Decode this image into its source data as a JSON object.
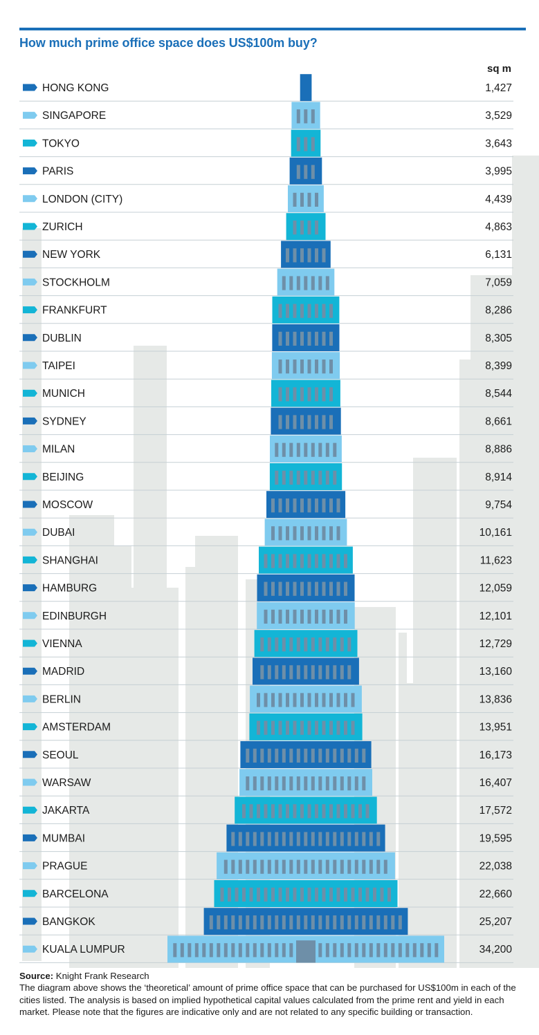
{
  "title": "How much prime office space does US$100m buy?",
  "colors": {
    "title": "#1a6fb8",
    "bar_top": "#1a6fb8",
    "dark": "#1a6fb8",
    "light": "#7fcbef",
    "medium": "#13b5d6",
    "window": "#6e8fa8",
    "divider": "#c5cfd4",
    "skyline": "#e6e9e7"
  },
  "chart_data": {
    "type": "bar",
    "orientation": "horizontal-centered",
    "unit": "sq m",
    "title": "How much prime office space does US$100m buy?",
    "categories": [
      "HONG KONG",
      "SINGAPORE",
      "TOKYO",
      "PARIS",
      "LONDON (CITY)",
      "ZURICH",
      "NEW YORK",
      "STOCKHOLM",
      "FRANKFURT",
      "DUBLIN",
      "TAIPEI",
      "MUNICH",
      "SYDNEY",
      "MILAN",
      "BEIJING",
      "MOSCOW",
      "DUBAI",
      "SHANGHAI",
      "HAMBURG",
      "EDINBURGH",
      "VIENNA",
      "MADRID",
      "BERLIN",
      "AMSTERDAM",
      "SEOUL",
      "WARSAW",
      "JAKARTA",
      "MUMBAI",
      "PRAGUE",
      "BARCELONA",
      "BANGKOK",
      "KUALA LUMPUR"
    ],
    "values": [
      1427,
      3529,
      3643,
      3995,
      4439,
      4863,
      6131,
      7059,
      8286,
      8305,
      8399,
      8544,
      8661,
      8886,
      8914,
      9754,
      10161,
      11623,
      12059,
      12101,
      12729,
      13160,
      13836,
      13951,
      16173,
      16407,
      17572,
      19595,
      22038,
      22660,
      25207,
      34200
    ],
    "value_labels": [
      "1,427",
      "3,529",
      "3,643",
      "3,995",
      "4,439",
      "4,863",
      "6,131",
      "7,059",
      "8,286",
      "8,305",
      "8,399",
      "8,544",
      "8,661",
      "8,886",
      "8,914",
      "9,754",
      "10,161",
      "11,623",
      "12,059",
      "12,101",
      "12,729",
      "13,160",
      "13,836",
      "13,951",
      "16,173",
      "16,407",
      "17,572",
      "19,595",
      "22,038",
      "22,660",
      "25,207",
      "34,200"
    ]
  },
  "source": {
    "label": "Source:",
    "text": " Knight Frank Research",
    "description": "The diagram above shows the ‘theoretical’ amount of prime office space that can be purchased for US$100m in each of the cities listed. The analysis is based on implied hypothetical capital values calculated from the prime rent and yield in each market. Please note that the figures are indicative only and are not related to any specific building or transaction."
  }
}
